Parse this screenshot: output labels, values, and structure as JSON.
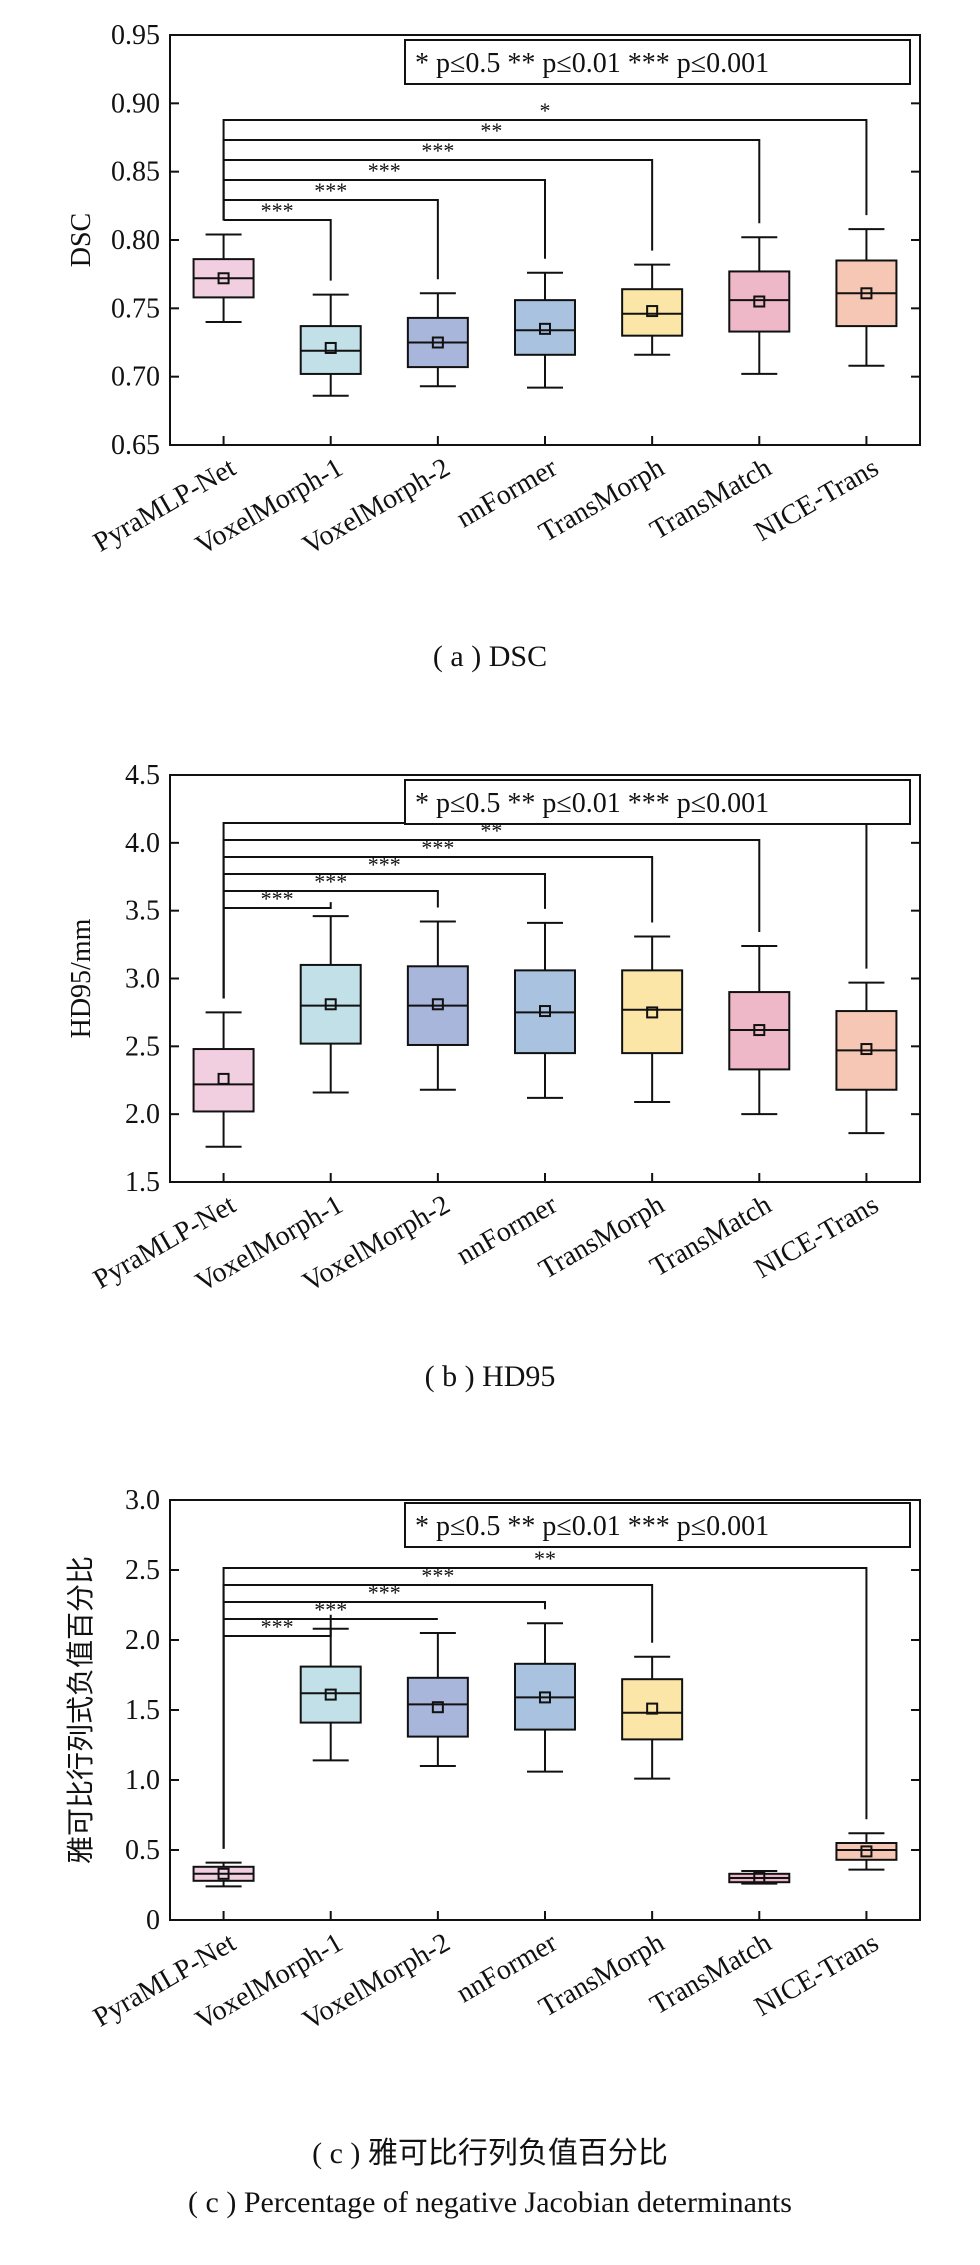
{
  "legend_label": "* p≤0.5   ** p≤0.01   *** p≤0.001",
  "captions": {
    "a": "( a ) DSC",
    "b": "( b ) HD95",
    "c_zh": "( c ) 雅可比行列负值百分比",
    "c_en": "( c ) Percentage of negative Jacobian determinants"
  },
  "colors": {
    "PyraMLP-Net": "#f2cfe0",
    "VoxelMorph-1": "#c2e0e8",
    "VoxelMorph-2": "#a9b6dc",
    "nnFormer": "#a9c2e0",
    "TransMorph": "#fbe6a7",
    "TransMatch": "#eeb8c8",
    "NICE-Trans": "#f6c7b4",
    "outline": "#111111"
  },
  "chart_data": [
    {
      "id": "a",
      "type": "box",
      "ylabel": "DSC",
      "ylim": [
        0.65,
        0.95
      ],
      "yticks": [
        "0.65",
        "0.70",
        "0.75",
        "0.80",
        "0.85",
        "0.90",
        "0.95"
      ],
      "categories": [
        "PyraMLP-Net",
        "VoxelMorph-1",
        "VoxelMorph-2",
        "nnFormer",
        "TransMorph",
        "TransMatch",
        "NICE-Trans"
      ],
      "boxes": [
        {
          "min": 0.74,
          "q1": 0.758,
          "median": 0.772,
          "q3": 0.786,
          "max": 0.804,
          "mean": 0.772
        },
        {
          "min": 0.686,
          "q1": 0.702,
          "median": 0.719,
          "q3": 0.737,
          "max": 0.76,
          "mean": 0.721
        },
        {
          "min": 0.693,
          "q1": 0.707,
          "median": 0.725,
          "q3": 0.743,
          "max": 0.761,
          "mean": 0.725
        },
        {
          "min": 0.692,
          "q1": 0.716,
          "median": 0.734,
          "q3": 0.756,
          "max": 0.776,
          "mean": 0.735
        },
        {
          "min": 0.716,
          "q1": 0.73,
          "median": 0.746,
          "q3": 0.764,
          "max": 0.782,
          "mean": 0.748
        },
        {
          "min": 0.702,
          "q1": 0.733,
          "median": 0.756,
          "q3": 0.777,
          "max": 0.802,
          "mean": 0.755
        },
        {
          "min": 0.708,
          "q1": 0.737,
          "median": 0.761,
          "q3": 0.785,
          "max": 0.808,
          "mean": 0.761
        }
      ],
      "significance": [
        {
          "target": "VoxelMorph-1",
          "label": "***"
        },
        {
          "target": "VoxelMorph-2",
          "label": "***"
        },
        {
          "target": "nnFormer",
          "label": "***"
        },
        {
          "target": "TransMorph",
          "label": "***"
        },
        {
          "target": "TransMatch",
          "label": "**"
        },
        {
          "target": "NICE-Trans",
          "label": "*"
        }
      ]
    },
    {
      "id": "b",
      "type": "box",
      "ylabel": "HD95/mm",
      "ylim": [
        1.5,
        4.5
      ],
      "yticks": [
        "1.5",
        "2.0",
        "2.5",
        "3.0",
        "3.5",
        "4.0",
        "4.5"
      ],
      "categories": [
        "PyraMLP-Net",
        "VoxelMorph-1",
        "VoxelMorph-2",
        "nnFormer",
        "TransMorph",
        "TransMatch",
        "NICE-Trans"
      ],
      "boxes": [
        {
          "min": 1.76,
          "q1": 2.02,
          "median": 2.22,
          "q3": 2.48,
          "max": 2.75,
          "mean": 2.26
        },
        {
          "min": 2.16,
          "q1": 2.52,
          "median": 2.8,
          "q3": 3.1,
          "max": 3.46,
          "mean": 2.81
        },
        {
          "min": 2.18,
          "q1": 2.51,
          "median": 2.8,
          "q3": 3.09,
          "max": 3.42,
          "mean": 2.81
        },
        {
          "min": 2.12,
          "q1": 2.45,
          "median": 2.75,
          "q3": 3.06,
          "max": 3.41,
          "mean": 2.76
        },
        {
          "min": 2.09,
          "q1": 2.45,
          "median": 2.77,
          "q3": 3.06,
          "max": 3.31,
          "mean": 2.75
        },
        {
          "min": 2.0,
          "q1": 2.33,
          "median": 2.62,
          "q3": 2.9,
          "max": 3.24,
          "mean": 2.62
        },
        {
          "min": 1.86,
          "q1": 2.18,
          "median": 2.47,
          "q3": 2.76,
          "max": 2.97,
          "mean": 2.48
        }
      ],
      "significance": [
        {
          "target": "VoxelMorph-1",
          "label": "***"
        },
        {
          "target": "VoxelMorph-2",
          "label": "***"
        },
        {
          "target": "nnFormer",
          "label": "***"
        },
        {
          "target": "TransMorph",
          "label": "***"
        },
        {
          "target": "TransMatch",
          "label": "**"
        },
        {
          "target": "NICE-Trans",
          "label": "*"
        }
      ]
    },
    {
      "id": "c",
      "type": "box",
      "ylabel": "雅可比行列式负值百分比",
      "ylim": [
        0,
        3.0
      ],
      "yticks": [
        "0",
        "0.5",
        "1.0",
        "1.5",
        "2.0",
        "2.5",
        "3.0"
      ],
      "categories": [
        "PyraMLP-Net",
        "VoxelMorph-1",
        "VoxelMorph-2",
        "nnFormer",
        "TransMorph",
        "TransMatch",
        "NICE-Trans"
      ],
      "boxes": [
        {
          "min": 0.24,
          "q1": 0.28,
          "median": 0.33,
          "q3": 0.38,
          "max": 0.41,
          "mean": 0.33
        },
        {
          "min": 1.14,
          "q1": 1.41,
          "median": 1.62,
          "q3": 1.81,
          "max": 2.08,
          "mean": 1.61
        },
        {
          "min": 1.1,
          "q1": 1.31,
          "median": 1.54,
          "q3": 1.73,
          "max": 2.05,
          "mean": 1.52
        },
        {
          "min": 1.06,
          "q1": 1.36,
          "median": 1.59,
          "q3": 1.83,
          "max": 2.12,
          "mean": 1.59
        },
        {
          "min": 1.01,
          "q1": 1.29,
          "median": 1.48,
          "q3": 1.72,
          "max": 1.88,
          "mean": 1.51
        },
        {
          "min": 0.26,
          "q1": 0.27,
          "median": 0.3,
          "q3": 0.33,
          "max": 0.35,
          "mean": 0.3
        },
        {
          "min": 0.36,
          "q1": 0.43,
          "median": 0.5,
          "q3": 0.55,
          "max": 0.62,
          "mean": 0.49
        }
      ],
      "significance": [
        {
          "target": "VoxelMorph-1",
          "label": "***"
        },
        {
          "target": "VoxelMorph-2",
          "label": "***"
        },
        {
          "target": "nnFormer",
          "label": "***"
        },
        {
          "target": "TransMorph",
          "label": "***"
        },
        {
          "target": "NICE-Trans",
          "label": "**"
        }
      ]
    }
  ]
}
